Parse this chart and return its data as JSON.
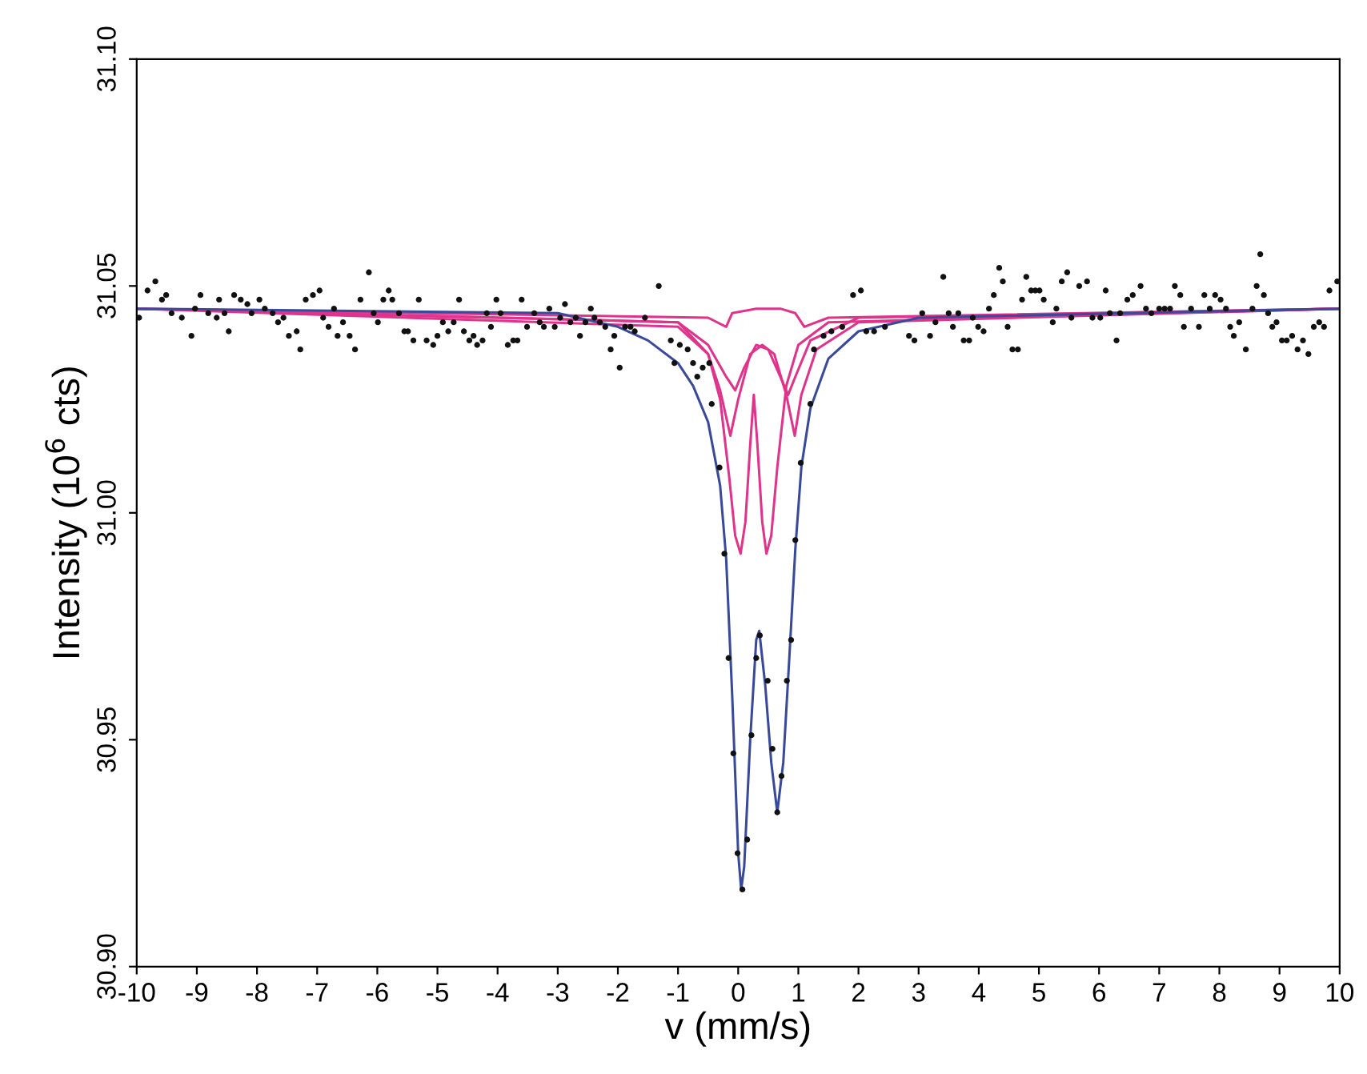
{
  "chart_data": {
    "type": "scatter",
    "xlabel": "v (mm/s)",
    "ylabel": "Intensity (10$^{6}$ cts)",
    "xlim": [
      -10,
      10
    ],
    "ylim": [
      30.9,
      31.1
    ],
    "xticks": [
      -10,
      -9,
      -8,
      -7,
      -6,
      -5,
      -4,
      -3,
      -2,
      -1,
      0,
      1,
      2,
      3,
      4,
      5,
      6,
      7,
      8,
      9,
      10
    ],
    "yticks": [
      {
        "value": 30.9,
        "label": "30.90"
      },
      {
        "value": 30.95,
        "label": "30.95"
      },
      {
        "value": 31.0,
        "label": "31.00"
      },
      {
        "value": 31.05,
        "label": "31.05"
      },
      {
        "value": 31.1,
        "label": "31.10"
      }
    ],
    "grid": false,
    "series": [
      {
        "type": "line",
        "color": "#e0348c",
        "marker": "none",
        "x": [
          -10,
          -1,
          -0.5,
          -0.3,
          -0.15,
          -0.05,
          0.04,
          0.12,
          0.2,
          0.26,
          0.32,
          0.4,
          0.47,
          0.55,
          0.65,
          0.8,
          1.0,
          1.5,
          10
        ],
        "values": [
          31.045,
          31.042,
          31.035,
          31.025,
          31.008,
          30.995,
          30.991,
          30.998,
          31.015,
          31.026,
          31.015,
          30.998,
          30.991,
          30.995,
          31.01,
          31.028,
          31.037,
          31.042,
          31.045
        ]
      },
      {
        "type": "line",
        "color": "#e0348c",
        "marker": "none",
        "x": [
          -10,
          -1,
          -0.5,
          -0.3,
          -0.13,
          0,
          0.2,
          0.4,
          0.6,
          0.8,
          0.94,
          1.05,
          1.3,
          2,
          10
        ],
        "values": [
          31.045,
          31.041,
          31.035,
          31.027,
          31.017,
          31.025,
          31.035,
          31.037,
          31.035,
          31.026,
          31.017,
          31.026,
          31.036,
          31.042,
          31.045
        ]
      },
      {
        "type": "line",
        "color": "#e0348c",
        "marker": "none",
        "x": [
          -10,
          -1,
          -0.5,
          -0.2,
          -0.05,
          0.1,
          0.3,
          0.5,
          0.7,
          0.83,
          0.95,
          1.2,
          2,
          10
        ],
        "values": [
          31.045,
          31.042,
          31.037,
          31.03,
          31.027,
          31.032,
          31.037,
          31.036,
          31.03,
          31.026,
          31.03,
          31.038,
          31.043,
          31.045
        ]
      },
      {
        "type": "line",
        "color": "#e0348c",
        "marker": "none",
        "x": [
          -10,
          -0.5,
          -0.2,
          -0.1,
          0.3,
          0.7,
          0.95,
          1.1,
          1.5,
          10
        ],
        "values": [
          31.045,
          31.043,
          31.041,
          31.044,
          31.045,
          31.045,
          31.044,
          31.041,
          31.043,
          31.045
        ]
      },
      {
        "type": "line",
        "color": "#3a4a9a",
        "marker": "none",
        "x": [
          -10,
          -3,
          -2,
          -1.5,
          -1,
          -0.75,
          -0.5,
          -0.3,
          -0.2,
          -0.1,
          0,
          0.05,
          0.1,
          0.2,
          0.3,
          0.35,
          0.45,
          0.55,
          0.65,
          0.75,
          0.85,
          0.95,
          1.05,
          1.2,
          1.5,
          2,
          3,
          10
        ],
        "values": [
          31.045,
          31.044,
          31.041,
          31.038,
          31.033,
          31.028,
          31.02,
          31.006,
          30.99,
          30.96,
          30.925,
          30.917,
          30.922,
          30.95,
          30.972,
          30.974,
          30.962,
          30.945,
          30.934,
          30.945,
          30.968,
          30.992,
          31.01,
          31.023,
          31.034,
          31.04,
          31.043,
          31.045
        ]
      },
      {
        "color": "#111111",
        "marker": "circle",
        "x": [
          -9.96,
          -9.82,
          -9.69,
          -9.58,
          -9.51,
          -9.42,
          -9.25,
          -9.09,
          -9.03,
          -8.94,
          -8.81,
          -8.67,
          -8.63,
          -8.54,
          -8.47,
          -8.38,
          -8.27,
          -8.16,
          -8.09,
          -7.96,
          -7.87,
          -7.74,
          -7.65,
          -7.56,
          -7.47,
          -7.34,
          -7.28,
          -7.19,
          -7.07,
          -6.96,
          -6.9,
          -6.81,
          -6.72,
          -6.66,
          -6.57,
          -6.46,
          -6.37,
          -6.28,
          -6.14,
          -6.06,
          -5.99,
          -5.9,
          -5.81,
          -5.75,
          -5.64,
          -5.55,
          -5.49,
          -5.4,
          -5.31,
          -5.18,
          -5.07,
          -5.0,
          -4.91,
          -4.82,
          -4.73,
          -4.64,
          -4.56,
          -4.47,
          -4.4,
          -4.34,
          -4.25,
          -4.18,
          -4.11,
          -4.02,
          -3.95,
          -3.83,
          -3.74,
          -3.67,
          -3.6,
          -3.51,
          -3.39,
          -3.3,
          -3.23,
          -3.14,
          -3.05,
          -2.96,
          -2.88,
          -2.79,
          -2.7,
          -2.63,
          -2.54,
          -2.45,
          -2.39,
          -2.3,
          -2.21,
          -2.12,
          -2.06,
          -1.97,
          -1.88,
          -1.79,
          -1.72,
          -1.55,
          -1.32,
          -1.12,
          -1.06,
          -0.97,
          -0.84,
          -0.75,
          -0.68,
          -0.59,
          -0.48,
          -0.44,
          -0.31,
          -0.23,
          -0.16,
          -0.08,
          -0.01,
          0.07,
          0.15,
          0.22,
          0.3,
          0.36,
          0.49,
          0.57,
          0.65,
          0.72,
          0.81,
          0.88,
          0.95,
          1.04,
          1.2,
          1.26,
          1.42,
          1.55,
          1.73,
          1.91,
          2.04,
          2.13,
          2.26,
          2.44,
          2.84,
          2.93,
          3.06,
          3.19,
          3.28,
          3.41,
          3.5,
          3.57,
          3.66,
          3.75,
          3.84,
          3.9,
          3.99,
          4.08,
          4.17,
          4.25,
          4.34,
          4.4,
          4.48,
          4.56,
          4.65,
          4.72,
          4.79,
          4.87,
          4.94,
          5.01,
          5.08,
          5.23,
          5.29,
          5.38,
          5.47,
          5.54,
          5.67,
          5.8,
          5.89,
          6.02,
          6.11,
          6.18,
          6.29,
          6.35,
          6.47,
          6.56,
          6.69,
          6.78,
          6.87,
          7.0,
          7.09,
          7.18,
          7.26,
          7.35,
          7.41,
          7.53,
          7.66,
          7.75,
          7.84,
          7.93,
          8.02,
          8.11,
          8.18,
          8.24,
          8.33,
          8.44,
          8.55,
          8.62,
          8.68,
          8.74,
          8.81,
          8.88,
          8.95,
          9.04,
          9.12,
          9.21,
          9.3,
          9.39,
          9.48,
          9.57,
          9.66,
          9.74,
          9.83,
          9.96
        ],
        "values": [
          31.043,
          31.049,
          31.051,
          31.047,
          31.048,
          31.044,
          31.043,
          31.039,
          31.045,
          31.048,
          31.044,
          31.043,
          31.047,
          31.044,
          31.04,
          31.048,
          31.047,
          31.046,
          31.044,
          31.047,
          31.045,
          31.044,
          31.042,
          31.043,
          31.039,
          31.04,
          31.036,
          31.047,
          31.048,
          31.049,
          31.043,
          31.041,
          31.045,
          31.039,
          31.042,
          31.039,
          31.036,
          31.047,
          31.053,
          31.044,
          31.042,
          31.047,
          31.049,
          31.047,
          31.044,
          31.04,
          31.04,
          31.038,
          31.047,
          31.038,
          31.037,
          31.039,
          31.042,
          31.04,
          31.042,
          31.047,
          31.04,
          31.038,
          31.039,
          31.037,
          31.038,
          31.044,
          31.041,
          31.047,
          31.044,
          31.037,
          31.038,
          31.038,
          31.047,
          31.041,
          31.044,
          31.042,
          31.041,
          31.045,
          31.041,
          31.043,
          31.046,
          31.042,
          31.043,
          31.039,
          31.042,
          31.045,
          31.043,
          31.042,
          31.041,
          31.036,
          31.039,
          31.032,
          31.041,
          31.041,
          31.04,
          31.043,
          31.05,
          31.038,
          31.033,
          31.037,
          31.036,
          31.033,
          31.03,
          31.032,
          31.033,
          31.024,
          31.01,
          30.991,
          30.968,
          30.947,
          30.925,
          30.917,
          30.928,
          30.951,
          30.968,
          30.973,
          30.963,
          30.948,
          30.934,
          30.942,
          30.963,
          30.972,
          30.994,
          31.011,
          31.024,
          31.036,
          31.039,
          31.04,
          31.041,
          31.048,
          31.049,
          31.04,
          31.04,
          31.041,
          31.039,
          31.038,
          31.044,
          31.039,
          31.042,
          31.052,
          31.044,
          31.041,
          31.044,
          31.038,
          31.038,
          31.043,
          31.041,
          31.04,
          31.045,
          31.048,
          31.054,
          31.051,
          31.041,
          31.036,
          31.036,
          31.047,
          31.052,
          31.049,
          31.049,
          31.049,
          31.047,
          31.042,
          31.045,
          31.051,
          31.053,
          31.043,
          31.05,
          31.051,
          31.043,
          31.043,
          31.049,
          31.044,
          31.038,
          31.044,
          31.047,
          31.048,
          31.05,
          31.045,
          31.044,
          31.045,
          31.045,
          31.045,
          31.05,
          31.048,
          31.041,
          31.045,
          31.041,
          31.048,
          31.045,
          31.048,
          31.047,
          31.045,
          31.041,
          31.039,
          31.042,
          31.036,
          31.045,
          31.05,
          31.057,
          31.048,
          31.044,
          31.041,
          31.042,
          31.038,
          31.038,
          31.039,
          31.036,
          31.038,
          31.035,
          31.041,
          31.042,
          31.041,
          31.049,
          31.051
        ]
      }
    ]
  }
}
